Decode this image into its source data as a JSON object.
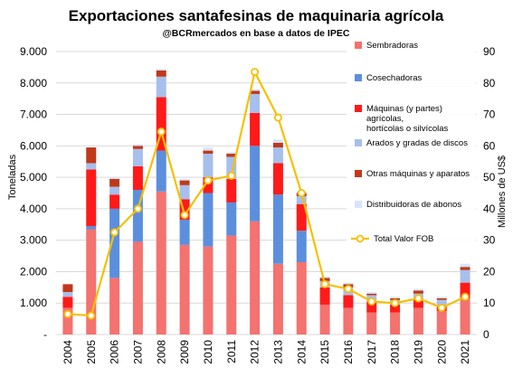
{
  "chart_data": {
    "type": "bar",
    "stacked": true,
    "title": "Exportaciones santafesinas de maquinaria agrícola",
    "subtitle": "@BCRmercados en base a datos de IPEC",
    "ylabel_left": "Toneladas",
    "ylabel_right": "Millones de US$",
    "ylim_left": [
      0,
      9000
    ],
    "ylim_right": [
      0,
      90
    ],
    "yticks_left": [
      "-",
      "1.000",
      "2.000",
      "3.000",
      "4.000",
      "5.000",
      "6.000",
      "7.000",
      "8.000",
      "9.000"
    ],
    "yticks_right": [
      "0",
      "10",
      "20",
      "30",
      "40",
      "50",
      "60",
      "70",
      "80",
      "90"
    ],
    "grid": true,
    "legend_position": "right",
    "categories": [
      "2004",
      "2005",
      "2006",
      "2007",
      "2008",
      "2009",
      "2010",
      "2011",
      "2012",
      "2013",
      "2014",
      "2015",
      "2016",
      "2017",
      "2018",
      "2019",
      "2020",
      "2021"
    ],
    "series": [
      {
        "name": "Sembradoras",
        "color": "#f4726f",
        "values": [
          850,
          3350,
          1800,
          2950,
          4550,
          2850,
          2800,
          3150,
          3600,
          2250,
          2300,
          950,
          850,
          700,
          700,
          850,
          750,
          1150
        ]
      },
      {
        "name": "Cosechadoras",
        "color": "#5b8fde",
        "values": [
          0,
          100,
          2200,
          1650,
          1300,
          800,
          1700,
          1050,
          2400,
          2200,
          1000,
          0,
          0,
          0,
          0,
          0,
          0,
          0
        ]
      },
      {
        "name": "Máquinas (y partes) agrícolas, hortícolas o silvícolas",
        "color": "#ff1a1a",
        "lines": [
          "Máquinas (y partes)",
          "agrícolas,",
          "hortícolas o silvícolas"
        ],
        "values": [
          350,
          1800,
          450,
          750,
          1700,
          650,
          500,
          750,
          1050,
          1000,
          850,
          550,
          400,
          350,
          250,
          250,
          150,
          500
        ]
      },
      {
        "name": "Arados y gradas de discos",
        "color": "#a7bfec",
        "values": [
          150,
          200,
          250,
          550,
          650,
          450,
          750,
          700,
          600,
          500,
          250,
          200,
          250,
          200,
          150,
          200,
          200,
          400
        ]
      },
      {
        "name": "Otras máquinas y aparatos",
        "color": "#c0391b",
        "values": [
          250,
          500,
          250,
          100,
          200,
          150,
          100,
          100,
          100,
          150,
          100,
          100,
          100,
          50,
          50,
          100,
          50,
          100
        ]
      },
      {
        "name": "Distribuidoras de abonos",
        "color": "#d6e5fb",
        "values": [
          0,
          0,
          50,
          50,
          50,
          50,
          100,
          50,
          50,
          100,
          50,
          50,
          50,
          50,
          50,
          50,
          50,
          100
        ]
      }
    ],
    "line_series": {
      "name": "Total Valor FOB",
      "color": "#f5c000",
      "axis": "right",
      "values": [
        6.5,
        6.0,
        32.5,
        40.0,
        64.5,
        38.0,
        49.0,
        50.5,
        83.5,
        69.0,
        45.0,
        16.0,
        14.5,
        10.5,
        10.0,
        11.5,
        8.5,
        12.0
      ]
    }
  }
}
